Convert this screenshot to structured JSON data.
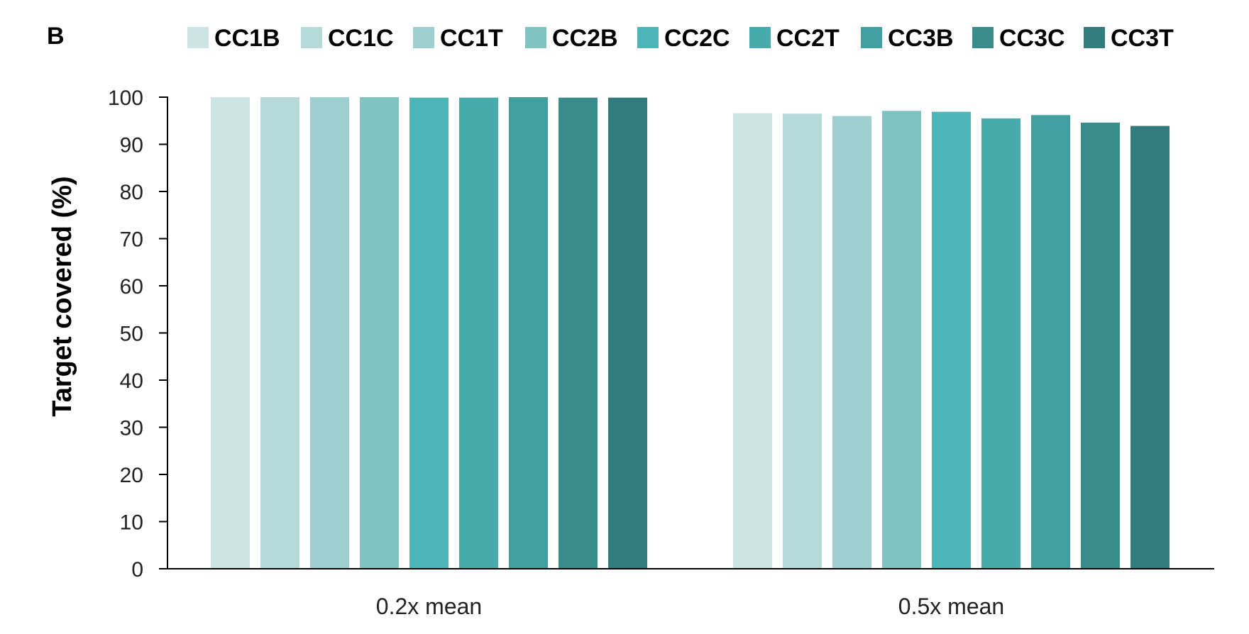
{
  "panel_label": "B",
  "chart_data": {
    "type": "bar",
    "categories": [
      "0.2x mean",
      "0.5x mean"
    ],
    "series": [
      {
        "name": "CC1B",
        "color": "#cde4e5",
        "values": [
          100,
          96.6
        ]
      },
      {
        "name": "CC1C",
        "color": "#b6dada",
        "values": [
          100,
          96.5
        ]
      },
      {
        "name": "CC1T",
        "color": "#9ecfd0",
        "values": [
          100,
          96.0
        ]
      },
      {
        "name": "CC2B",
        "color": "#7fc3c3",
        "values": [
          100,
          97.1
        ]
      },
      {
        "name": "CC2C",
        "color": "#4db5b7",
        "values": [
          99.9,
          96.9
        ]
      },
      {
        "name": "CC2T",
        "color": "#47aaab",
        "values": [
          99.9,
          95.5
        ]
      },
      {
        "name": "CC3B",
        "color": "#419f9f",
        "values": [
          100,
          96.2
        ]
      },
      {
        "name": "CC3C",
        "color": "#388c8b",
        "values": [
          99.9,
          94.6
        ]
      },
      {
        "name": "CC3T",
        "color": "#317d7e",
        "values": [
          99.9,
          93.9
        ]
      }
    ],
    "title": "",
    "xlabel": "",
    "ylabel": "Target covered (%)",
    "ylim": [
      0,
      100
    ],
    "yticks": [
      "0",
      "10",
      "20",
      "30",
      "40",
      "50",
      "60",
      "70",
      "80",
      "90",
      "100"
    ],
    "grid": false,
    "legend_position": "top"
  }
}
